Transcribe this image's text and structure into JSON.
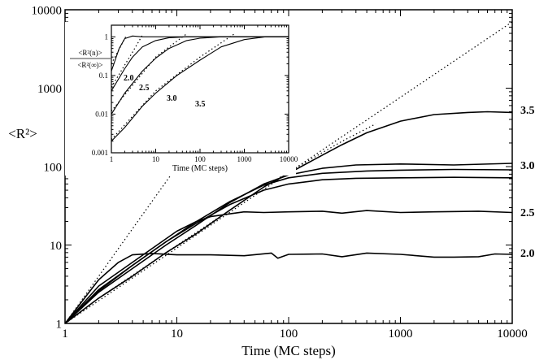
{
  "chart_data": [
    {
      "type": "line",
      "title": "",
      "xlabel": "Time (MC steps)",
      "ylabel": "<R²>",
      "xscale": "log",
      "yscale": "log",
      "xlim": [
        1,
        10000
      ],
      "ylim": [
        1,
        10000
      ],
      "xticks": [
        1,
        10,
        100,
        1000,
        10000
      ],
      "yticks": [
        1,
        10,
        100,
        1000,
        10000
      ],
      "xtick_labels": [
        "1",
        "10",
        "100",
        "1000",
        "10000"
      ],
      "ytick_labels": [
        "1",
        "10",
        "100",
        "1000",
        "10000"
      ],
      "grid": false,
      "series": [
        {
          "name": "3.5",
          "style": "solid",
          "points": [
            [
              1,
              1
            ],
            [
              2,
              2.1
            ],
            [
              4,
              4
            ],
            [
              8,
              8
            ],
            [
              15,
              14
            ],
            [
              30,
              28
            ],
            [
              60,
              55
            ],
            [
              100,
              82
            ],
            [
              200,
              140
            ],
            [
              300,
              190
            ],
            [
              500,
              270
            ],
            [
              1000,
              380
            ],
            [
              2000,
              460
            ],
            [
              4000,
              490
            ],
            [
              6000,
              500
            ],
            [
              10000,
              490
            ]
          ]
        },
        {
          "name": "3.0",
          "style": "solid",
          "points": [
            [
              1,
              1
            ],
            [
              2,
              2.5
            ],
            [
              4,
              5
            ],
            [
              8,
              10
            ],
            [
              15,
              18
            ],
            [
              30,
              35
            ],
            [
              60,
              60
            ],
            [
              100,
              78
            ],
            [
              200,
              95
            ],
            [
              400,
              105
            ],
            [
              1000,
              108
            ],
            [
              3000,
              105
            ],
            [
              10000,
              110
            ]
          ]
        },
        {
          "name": "3.0",
          "style": "solid",
          "points": [
            [
              1,
              1
            ],
            [
              2,
              2.7
            ],
            [
              4,
              5.5
            ],
            [
              8,
              11
            ],
            [
              15,
              19
            ],
            [
              30,
              33
            ],
            [
              60,
              50
            ],
            [
              100,
              60
            ],
            [
              200,
              68
            ],
            [
              400,
              71
            ],
            [
              1000,
              72
            ],
            [
              3000,
              73
            ],
            [
              10000,
              72
            ]
          ]
        },
        {
          "name": "3.0",
          "style": "solid",
          "points": [
            [
              1,
              1
            ],
            [
              2,
              2.6
            ],
            [
              4,
              5.5
            ],
            [
              8,
              11
            ],
            [
              15,
              20
            ],
            [
              30,
              36
            ],
            [
              60,
              58
            ],
            [
              100,
              72
            ],
            [
              200,
              82
            ],
            [
              500,
              88
            ],
            [
              1000,
              90
            ],
            [
              3000,
              92
            ],
            [
              10000,
              91
            ]
          ]
        },
        {
          "name": "2.5",
          "style": "solid",
          "points": [
            [
              1,
              1
            ],
            [
              2,
              3
            ],
            [
              3,
              4.5
            ],
            [
              4,
              6
            ],
            [
              6,
              9
            ],
            [
              10,
              15
            ],
            [
              15,
              20
            ],
            [
              20,
              23
            ],
            [
              30,
              25
            ],
            [
              40,
              26.5
            ],
            [
              60,
              26
            ],
            [
              100,
              26.5
            ],
            [
              200,
              27
            ],
            [
              300,
              25.5
            ],
            [
              500,
              27.5
            ],
            [
              1000,
              26
            ],
            [
              2000,
              26.5
            ],
            [
              5000,
              27
            ],
            [
              10000,
              26
            ]
          ]
        },
        {
          "name": "2.0",
          "style": "solid",
          "points": [
            [
              1,
              1
            ],
            [
              2,
              3.6
            ],
            [
              3,
              6
            ],
            [
              4,
              7.5
            ],
            [
              6,
              7.8
            ],
            [
              10,
              7.5
            ],
            [
              20,
              7.5
            ],
            [
              40,
              7.3
            ],
            [
              70,
              7.9
            ],
            [
              80,
              6.8
            ],
            [
              100,
              7.6
            ],
            [
              200,
              7.7
            ],
            [
              300,
              7.1
            ],
            [
              500,
              7.9
            ],
            [
              1000,
              7.6
            ],
            [
              2000,
              7.0
            ],
            [
              3000,
              7.0
            ],
            [
              5000,
              7.1
            ],
            [
              7000,
              7.7
            ],
            [
              10000,
              7.6
            ]
          ]
        },
        {
          "name": "",
          "style": "dotted",
          "points": [
            [
              1,
              1
            ],
            [
              10000,
              7000
            ]
          ]
        },
        {
          "name": "",
          "style": "dotted",
          "points": [
            [
              1,
              1
            ],
            [
              2,
              2.1
            ],
            [
              4,
              4.1
            ],
            [
              8,
              8
            ],
            [
              15,
              14.5
            ],
            [
              30,
              28
            ],
            [
              60,
              55
            ],
            [
              100,
              85
            ],
            [
              300,
              210
            ],
            [
              600,
              350
            ]
          ]
        },
        {
          "name": "",
          "style": "dotted",
          "points": [
            [
              1,
              1
            ],
            [
              2,
              4
            ],
            [
              5,
              25
            ],
            [
              10,
              100
            ],
            [
              11,
              125
            ]
          ]
        }
      ],
      "annotations": [
        "3.5",
        "3.0",
        "2.5",
        "2.0"
      ]
    },
    {
      "type": "line",
      "title": "",
      "xlabel": "Time (MC steps)",
      "ylabel_numerator": "<R²(n)>",
      "ylabel_denominator": "<R²(∞)>",
      "xscale": "log",
      "yscale": "log",
      "xlim": [
        1,
        10000
      ],
      "ylim": [
        0.001,
        2
      ],
      "xticks": [
        1,
        10,
        100,
        1000,
        10000
      ],
      "yticks": [
        0.001,
        0.01,
        0.1,
        1
      ],
      "xtick_labels": [
        "1",
        "10",
        "100",
        "1000",
        "10000"
      ],
      "ytick_labels": [
        "0.001",
        "0.01",
        "0.1",
        "1"
      ],
      "grid": false,
      "series": [
        {
          "name": "2.0",
          "style": "solid",
          "points": [
            [
              1,
              0.13
            ],
            [
              1.5,
              0.5
            ],
            [
              2,
              0.9
            ],
            [
              3,
              1.05
            ],
            [
              5,
              1.0
            ],
            [
              10,
              1.0
            ],
            [
              100,
              1.0
            ],
            [
              1000,
              1.0
            ],
            [
              10000,
              1.0
            ]
          ]
        },
        {
          "name": "2.5",
          "style": "solid",
          "points": [
            [
              1,
              0.04
            ],
            [
              2,
              0.15
            ],
            [
              3,
              0.3
            ],
            [
              5,
              0.55
            ],
            [
              10,
              0.8
            ],
            [
              20,
              0.95
            ],
            [
              50,
              1.0
            ],
            [
              200,
              1.0
            ],
            [
              10000,
              1.0
            ]
          ]
        },
        {
          "name": "3.0",
          "style": "solid",
          "points": [
            [
              1,
              0.01
            ],
            [
              2,
              0.035
            ],
            [
              5,
              0.13
            ],
            [
              10,
              0.28
            ],
            [
              20,
              0.5
            ],
            [
              50,
              0.8
            ],
            [
              100,
              0.92
            ],
            [
              300,
              1.0
            ],
            [
              1000,
              1.0
            ],
            [
              10000,
              1.0
            ]
          ]
        },
        {
          "name": "3.5",
          "style": "solid",
          "points": [
            [
              1,
              0.002
            ],
            [
              2,
              0.0045
            ],
            [
              5,
              0.016
            ],
            [
              10,
              0.035
            ],
            [
              30,
              0.1
            ],
            [
              100,
              0.25
            ],
            [
              300,
              0.55
            ],
            [
              1000,
              0.85
            ],
            [
              3000,
              1.0
            ],
            [
              10000,
              1.0
            ]
          ]
        },
        {
          "name": "",
          "style": "dotted",
          "points": [
            [
              1,
              0.2
            ],
            [
              2,
              0.9
            ],
            [
              2.2,
              1.1
            ]
          ]
        },
        {
          "name": "",
          "style": "dotted",
          "points": [
            [
              1,
              0.05
            ],
            [
              3,
              0.4
            ],
            [
              5,
              1.1
            ]
          ]
        },
        {
          "name": "",
          "style": "dotted",
          "points": [
            [
              1,
              0.012
            ],
            [
              10,
              0.3
            ],
            [
              50,
              1.2
            ]
          ]
        },
        {
          "name": "",
          "style": "dotted",
          "points": [
            [
              1,
              0.0022
            ],
            [
              10,
              0.04
            ],
            [
              100,
              0.3
            ],
            [
              600,
              1.2
            ]
          ]
        }
      ],
      "annotations": [
        "2.0",
        "2.5",
        "3.0",
        "3.5"
      ]
    }
  ]
}
